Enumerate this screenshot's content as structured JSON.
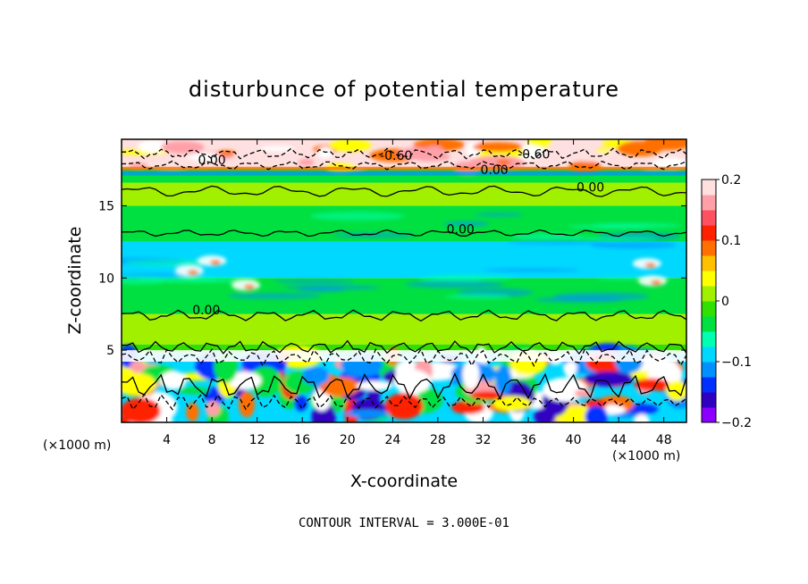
{
  "chart_data": {
    "type": "heatmap",
    "title": "disturbunce of potential temperature",
    "xlabel": "X-coordinate",
    "ylabel": "Z-coordinate",
    "x_unit": "(×1000 m)",
    "contour_note": "CONTOUR INTERVAL = 3.000E-01",
    "xlim": [
      0,
      50
    ],
    "ylim": [
      0,
      19.6
    ],
    "x_ticks": [
      4,
      8,
      12,
      16,
      20,
      24,
      28,
      32,
      36,
      40,
      44,
      48
    ],
    "y_ticks": [
      5,
      10,
      15
    ],
    "colorbar": {
      "range": [
        -0.2,
        0.2
      ],
      "tick_values": [
        0.2,
        0.1,
        0,
        -0.1,
        -0.2
      ],
      "tick_labels": [
        "0.2",
        "0.1",
        "0",
        "−0.1",
        "−0.2"
      ],
      "colors": [
        "#8b00ff",
        "#3000c0",
        "#0030ff",
        "#0090ff",
        "#00d8ff",
        "#00ffb0",
        "#00e040",
        "#30e000",
        "#a0f000",
        "#ffff00",
        "#ffc000",
        "#ff7000",
        "#ff2000",
        "#ff5060",
        "#ffa0a8",
        "#ffe0e0"
      ]
    },
    "contour_labels": [
      {
        "text": "0.00",
        "x": 8.0,
        "z": 18.0
      },
      {
        "text": "-0.60",
        "x": 24.3,
        "z": 18.3
      },
      {
        "text": "0.00",
        "x": 33.0,
        "z": 17.3
      },
      {
        "text": "-0.60",
        "x": 36.5,
        "z": 18.4
      },
      {
        "text": "0.00",
        "x": 41.5,
        "z": 16.1
      },
      {
        "text": "0.00",
        "x": 30.0,
        "z": 13.2
      },
      {
        "text": "0.00",
        "x": 7.5,
        "z": 7.6
      }
    ],
    "bands": [
      {
        "z": [
          0.0,
          4.8
        ],
        "value": null,
        "description_color": "mixed"
      },
      {
        "z": [
          4.8,
          5.4
        ],
        "value": -0.02
      },
      {
        "z": [
          5.4,
          7.5
        ],
        "value": 0.0
      },
      {
        "z": [
          7.5,
          10.0
        ],
        "value": -0.05
      },
      {
        "z": [
          10.0,
          12.5
        ],
        "value": -0.08
      },
      {
        "z": [
          12.5,
          15.0
        ],
        "value": -0.05
      },
      {
        "z": [
          15.0,
          16.6
        ],
        "value": 0.0
      },
      {
        "z": [
          16.6,
          17.6
        ],
        "value": -0.05
      },
      {
        "z": [
          17.6,
          19.6
        ],
        "value": 0.2
      }
    ]
  }
}
